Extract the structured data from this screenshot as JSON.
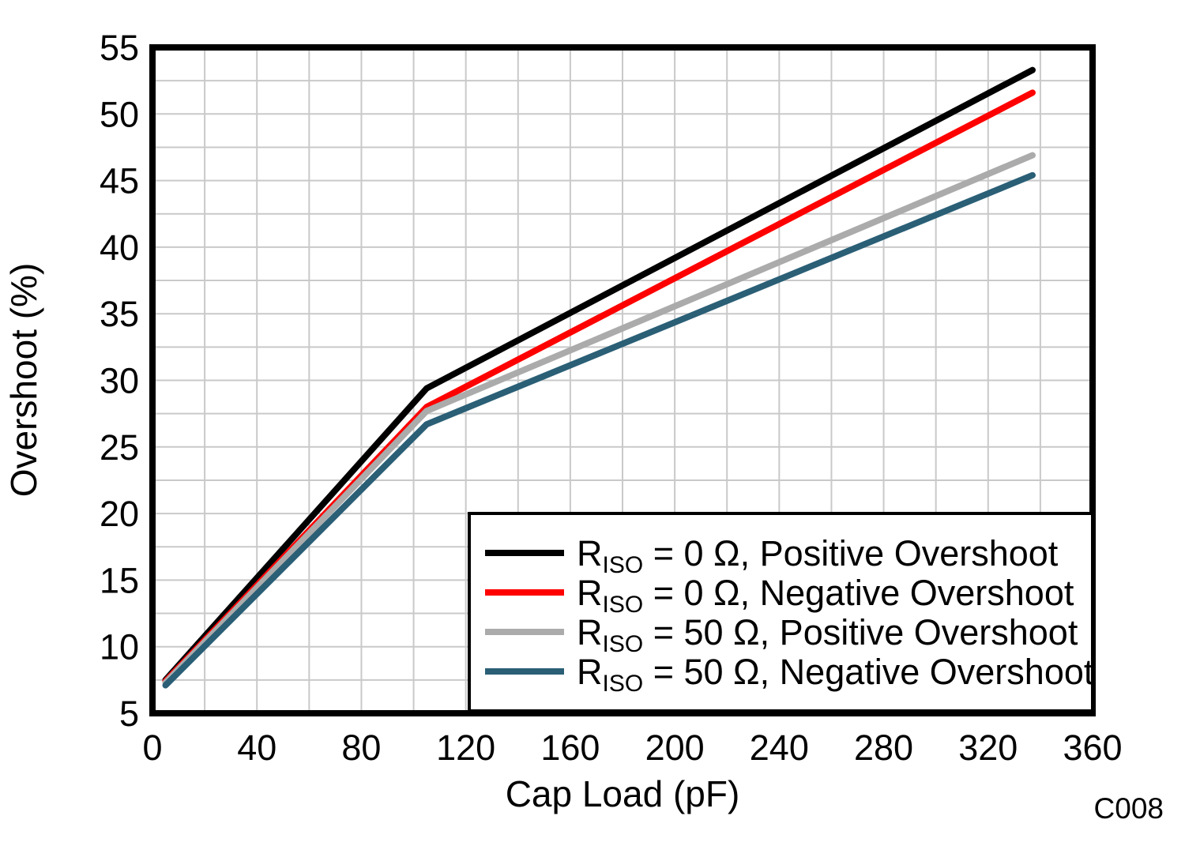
{
  "figure": {
    "y_axis_title": "Overshoot (%)",
    "x_axis_title": "Cap Load (pF)",
    "code_label": "C008"
  },
  "chart_data": {
    "type": "line",
    "title": "",
    "xlabel": "Cap Load (pF)",
    "ylabel": "Overshoot (%)",
    "xlim": [
      0,
      360
    ],
    "ylim": [
      5,
      55
    ],
    "x_tick_step": 40,
    "y_tick_step": 5,
    "x_grid_step": 20,
    "y_grid_step": 2.5,
    "grid": true,
    "legend_position": "bottom-right",
    "x_tick_labels": [
      "0",
      "40",
      "80",
      "120",
      "160",
      "200",
      "240",
      "280",
      "320",
      "360"
    ],
    "y_tick_labels": [
      "5",
      "10",
      "15",
      "20",
      "25",
      "30",
      "35",
      "40",
      "45",
      "50",
      "55"
    ],
    "series": [
      {
        "name": "RISO = 0 Ω, Positive Overshoot",
        "legend_pre": "R",
        "legend_sub": "ISO",
        "legend_rest": " = 0 Ω, Positive Overshoot",
        "color": "#000000",
        "points": [
          [
            5,
            7.5
          ],
          [
            105,
            29.4
          ],
          [
            337,
            53.3
          ]
        ]
      },
      {
        "name": "RISO = 0 Ω, Negative Overshoot",
        "legend_pre": "R",
        "legend_sub": "ISO",
        "legend_rest": " = 0 Ω, Negative Overshoot",
        "color": "#FF0000",
        "points": [
          [
            5,
            7.4
          ],
          [
            105,
            28.0
          ],
          [
            337,
            51.6
          ]
        ]
      },
      {
        "name": "RISO = 50 Ω, Positive Overshoot",
        "legend_pre": "R",
        "legend_sub": "ISO",
        "legend_rest": " = 50 Ω, Positive Overshoot",
        "color": "#ABABAB",
        "points": [
          [
            5,
            7.3
          ],
          [
            105,
            27.7
          ],
          [
            337,
            46.9
          ]
        ]
      },
      {
        "name": "RISO = 50 Ω, Negative Overshoot",
        "legend_pre": "R",
        "legend_sub": "ISO",
        "legend_rest": " = 50 Ω, Negative Overshoot",
        "color": "#2A5F76",
        "points": [
          [
            5,
            7.1
          ],
          [
            105,
            26.7
          ],
          [
            337,
            45.4
          ]
        ]
      }
    ],
    "colors": {
      "grid": "#C9C9C9",
      "frame": "#000000",
      "code_label": "#A0A4A8",
      "legend_border": "#000000",
      "legend_background": "#FFFFFF"
    }
  }
}
